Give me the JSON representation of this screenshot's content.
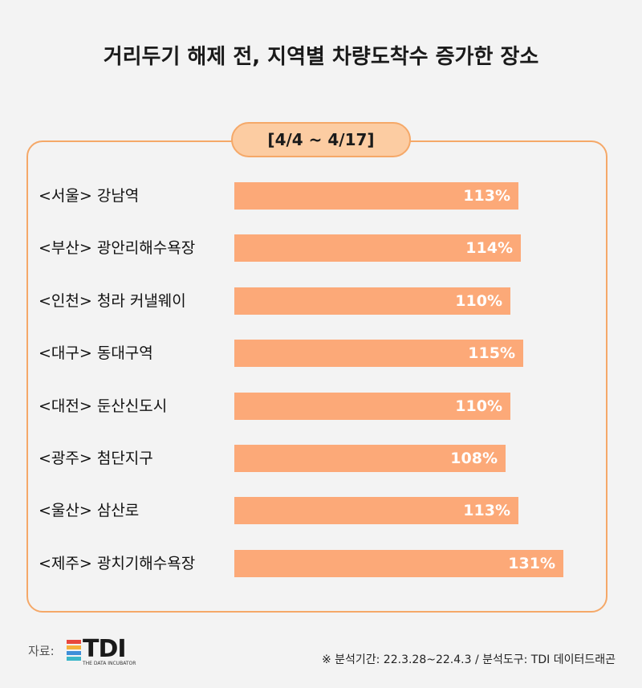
{
  "chart_data": {
    "type": "bar",
    "title": "거리두기 해제 전, 지역별 차량도착수 증가한 장소",
    "subtitle": "[4/4 ~ 4/17]",
    "categories": [
      "<서울> 강남역",
      "<부산> 광안리해수욕장",
      "<인천> 청라 커낼웨이",
      "<대구> 동대구역",
      "<대전> 둔산신도시",
      "<광주> 첨단지구",
      "<울산> 삼산로",
      "<제주> 광치기해수욕장"
    ],
    "values": [
      113,
      114,
      110,
      115,
      110,
      108,
      113,
      131
    ],
    "value_labels": [
      "113%",
      "114%",
      "110%",
      "115%",
      "110%",
      "108%",
      "113%",
      "131%"
    ],
    "bar_color": "#fca978",
    "orientation": "horizontal"
  },
  "footer": {
    "source_label": "자료:",
    "logo_text": "TDI",
    "logo_subtext": "THE DATA INCUBATOR",
    "logo_colors": [
      "#e8473d",
      "#f6b13b",
      "#3f8fd9",
      "#3bb6c9"
    ],
    "footnote": "※ 분석기간:  22.3.28~22.4.3 / 분석도구: TDI 데이터드래곤"
  },
  "colors": {
    "panel_border": "#f5a868",
    "period_fill": "#fccca2",
    "background": "#f3f3f3"
  }
}
